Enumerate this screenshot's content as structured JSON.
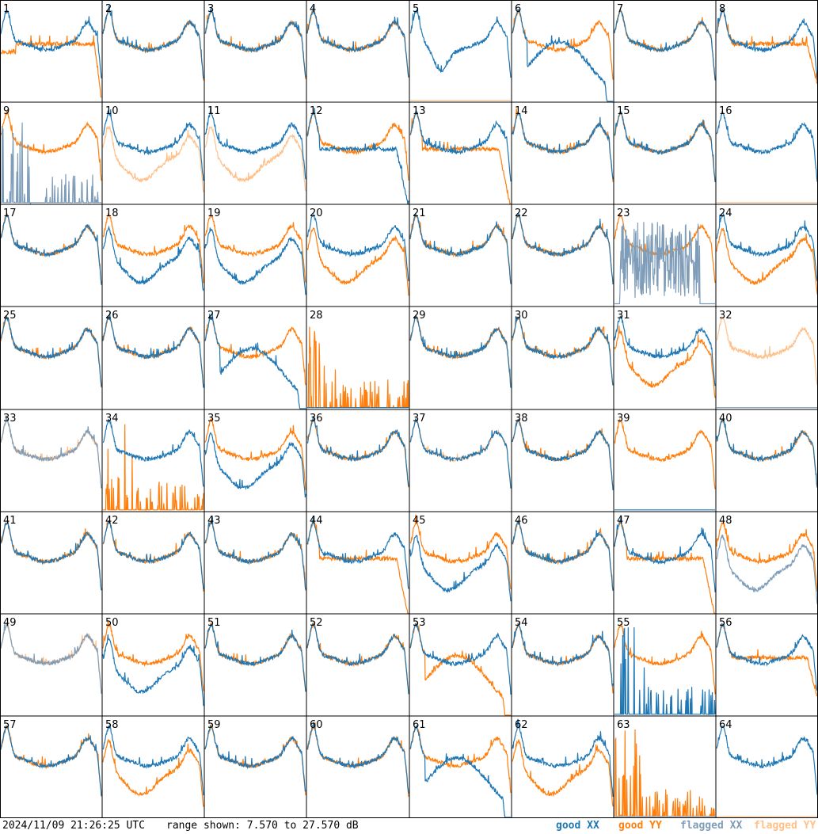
{
  "footer": {
    "timestamp": "2024/11/09 21:26:25 UTC",
    "range_text": "range shown: 7.570 to 27.570 dB"
  },
  "legend": {
    "good_xx": "good XX",
    "good_yy": "good YY",
    "flagged_xx": "flagged XX",
    "flagged_yy": "flagged YY"
  },
  "colors": {
    "good_xx": "#1f77b4",
    "good_yy": "#ff7f0e",
    "flagged_xx": "#7f9db9",
    "flagged_yy": "#ffc08a",
    "grid": "#000000",
    "background": "#ffffff"
  },
  "chart_data": {
    "type": "line",
    "layout": "8x8 small multiples",
    "y_range_db": [
      7.57,
      27.57
    ],
    "series_names": [
      "good XX",
      "good YY",
      "flagged XX",
      "flagged YY"
    ],
    "panels": [
      {
        "id": "1",
        "xx": "good",
        "yy": "good",
        "xx_shape": "normal",
        "yy_shape": "noisy_drop"
      },
      {
        "id": "2",
        "xx": "good",
        "yy": "good",
        "xx_shape": "normal",
        "yy_shape": "normal"
      },
      {
        "id": "3",
        "xx": "good",
        "yy": "good",
        "xx_shape": "normal",
        "yy_shape": "normal"
      },
      {
        "id": "4",
        "xx": "good",
        "yy": "good",
        "xx_shape": "normal",
        "yy_shape": "normal"
      },
      {
        "id": "5",
        "xx": "good",
        "yy": "flagged",
        "xx_shape": "dip",
        "yy_shape": "flat_zero"
      },
      {
        "id": "6",
        "xx": "good",
        "yy": "good",
        "xx_shape": "deep_drop",
        "yy_shape": "normal"
      },
      {
        "id": "7",
        "xx": "good",
        "yy": "good",
        "xx_shape": "normal",
        "yy_shape": "normal"
      },
      {
        "id": "8",
        "xx": "good",
        "yy": "good",
        "xx_shape": "normal",
        "yy_shape": "plateau"
      },
      {
        "id": "9",
        "xx": "flagged",
        "yy": "good",
        "xx_shape": "spiky_low",
        "yy_shape": "normal"
      },
      {
        "id": "10",
        "xx": "good",
        "yy": "flagged",
        "xx_shape": "normal",
        "yy_shape": "low"
      },
      {
        "id": "11",
        "xx": "good",
        "yy": "flagged",
        "xx_shape": "normal",
        "yy_shape": "low"
      },
      {
        "id": "12",
        "xx": "good",
        "yy": "good",
        "xx_shape": "plateau_drop",
        "yy_shape": "normal"
      },
      {
        "id": "13",
        "xx": "good",
        "yy": "good",
        "xx_shape": "normal",
        "yy_shape": "plateau_drop"
      },
      {
        "id": "14",
        "xx": "good",
        "yy": "good",
        "xx_shape": "normal",
        "yy_shape": "normal"
      },
      {
        "id": "15",
        "xx": "good",
        "yy": "good",
        "xx_shape": "normal",
        "yy_shape": "normal"
      },
      {
        "id": "16",
        "xx": "good",
        "yy": "flagged",
        "xx_shape": "normal",
        "yy_shape": "flat_zero"
      },
      {
        "id": "17",
        "xx": "good",
        "yy": "good",
        "xx_shape": "normal",
        "yy_shape": "normal"
      },
      {
        "id": "18",
        "xx": "good",
        "yy": "good",
        "xx_shape": "low",
        "yy_shape": "normal"
      },
      {
        "id": "19",
        "xx": "good",
        "yy": "good",
        "xx_shape": "low",
        "yy_shape": "normal"
      },
      {
        "id": "20",
        "xx": "good",
        "yy": "good",
        "xx_shape": "normal",
        "yy_shape": "low"
      },
      {
        "id": "21",
        "xx": "good",
        "yy": "good",
        "xx_shape": "normal",
        "yy_shape": "normal"
      },
      {
        "id": "22",
        "xx": "good",
        "yy": "good",
        "xx_shape": "normal",
        "yy_shape": "normal"
      },
      {
        "id": "23",
        "xx": "flagged",
        "yy": "good",
        "xx_shape": "spiky_mid",
        "yy_shape": "normal"
      },
      {
        "id": "24",
        "xx": "good",
        "yy": "good",
        "xx_shape": "normal",
        "yy_shape": "low"
      },
      {
        "id": "25",
        "xx": "good",
        "yy": "good",
        "xx_shape": "normal",
        "yy_shape": "normal"
      },
      {
        "id": "26",
        "xx": "good",
        "yy": "good",
        "xx_shape": "normal",
        "yy_shape": "normal"
      },
      {
        "id": "27",
        "xx": "good",
        "yy": "good",
        "xx_shape": "deep_drop",
        "yy_shape": "normal"
      },
      {
        "id": "28",
        "xx": "good",
        "yy": "good",
        "xx_shape": "flat_zero",
        "yy_shape": "spiky_low"
      },
      {
        "id": "29",
        "xx": "good",
        "yy": "good",
        "xx_shape": "normal",
        "yy_shape": "normal"
      },
      {
        "id": "30",
        "xx": "good",
        "yy": "good",
        "xx_shape": "normal",
        "yy_shape": "normal"
      },
      {
        "id": "31",
        "xx": "good",
        "yy": "good",
        "xx_shape": "normal",
        "yy_shape": "low"
      },
      {
        "id": "32",
        "xx": "flagged",
        "yy": "flagged",
        "xx_shape": "flat_zero",
        "yy_shape": "normal"
      },
      {
        "id": "33",
        "xx": "flagged",
        "yy": "flagged",
        "xx_shape": "normal",
        "yy_shape": "normal"
      },
      {
        "id": "34",
        "xx": "good",
        "yy": "good",
        "xx_shape": "normal",
        "yy_shape": "spiky_low"
      },
      {
        "id": "35",
        "xx": "good",
        "yy": "good",
        "xx_shape": "low",
        "yy_shape": "normal"
      },
      {
        "id": "36",
        "xx": "good",
        "yy": "good",
        "xx_shape": "normal",
        "yy_shape": "normal"
      },
      {
        "id": "37",
        "xx": "good",
        "yy": "flagged",
        "xx_shape": "normal",
        "yy_shape": "normal"
      },
      {
        "id": "38",
        "xx": "good",
        "yy": "good",
        "xx_shape": "normal",
        "yy_shape": "normal"
      },
      {
        "id": "39",
        "xx": "good",
        "yy": "good",
        "xx_shape": "flat_zero",
        "yy_shape": "normal"
      },
      {
        "id": "40",
        "xx": "good",
        "yy": "good",
        "xx_shape": "normal",
        "yy_shape": "normal"
      },
      {
        "id": "41",
        "xx": "good",
        "yy": "good",
        "xx_shape": "normal",
        "yy_shape": "normal"
      },
      {
        "id": "42",
        "xx": "good",
        "yy": "good",
        "xx_shape": "normal",
        "yy_shape": "normal"
      },
      {
        "id": "43",
        "xx": "good",
        "yy": "good",
        "xx_shape": "normal",
        "yy_shape": "normal"
      },
      {
        "id": "44",
        "xx": "good",
        "yy": "good",
        "xx_shape": "normal",
        "yy_shape": "plateau_drop"
      },
      {
        "id": "45",
        "xx": "good",
        "yy": "good",
        "xx_shape": "low",
        "yy_shape": "normal"
      },
      {
        "id": "46",
        "xx": "good",
        "yy": "good",
        "xx_shape": "normal",
        "yy_shape": "normal"
      },
      {
        "id": "47",
        "xx": "good",
        "yy": "good",
        "xx_shape": "normal",
        "yy_shape": "plateau_drop"
      },
      {
        "id": "48",
        "xx": "flagged",
        "yy": "good",
        "xx_shape": "low",
        "yy_shape": "normal"
      },
      {
        "id": "49",
        "xx": "flagged",
        "yy": "flagged",
        "xx_shape": "normal",
        "yy_shape": "normal"
      },
      {
        "id": "50",
        "xx": "good",
        "yy": "good",
        "xx_shape": "low",
        "yy_shape": "normal"
      },
      {
        "id": "51",
        "xx": "good",
        "yy": "good",
        "xx_shape": "normal",
        "yy_shape": "normal"
      },
      {
        "id": "52",
        "xx": "good",
        "yy": "good",
        "xx_shape": "normal",
        "yy_shape": "normal"
      },
      {
        "id": "53",
        "xx": "good",
        "yy": "good",
        "xx_shape": "normal",
        "yy_shape": "deep_drop"
      },
      {
        "id": "54",
        "xx": "good",
        "yy": "good",
        "xx_shape": "normal",
        "yy_shape": "normal"
      },
      {
        "id": "55",
        "xx": "good",
        "yy": "good",
        "xx_shape": "spiky_low",
        "yy_shape": "normal"
      },
      {
        "id": "56",
        "xx": "good",
        "yy": "good",
        "xx_shape": "normal",
        "yy_shape": "plateau"
      },
      {
        "id": "57",
        "xx": "good",
        "yy": "good",
        "xx_shape": "normal",
        "yy_shape": "normal"
      },
      {
        "id": "58",
        "xx": "good",
        "yy": "good",
        "xx_shape": "normal",
        "yy_shape": "low"
      },
      {
        "id": "59",
        "xx": "good",
        "yy": "good",
        "xx_shape": "normal",
        "yy_shape": "normal"
      },
      {
        "id": "60",
        "xx": "good",
        "yy": "good",
        "xx_shape": "normal",
        "yy_shape": "normal"
      },
      {
        "id": "61",
        "xx": "good",
        "yy": "good",
        "xx_shape": "deep_drop",
        "yy_shape": "normal"
      },
      {
        "id": "62",
        "xx": "good",
        "yy": "good",
        "xx_shape": "normal",
        "yy_shape": "low"
      },
      {
        "id": "63",
        "xx": "flagged",
        "yy": "good",
        "xx_shape": "flat_zero",
        "yy_shape": "spiky_low"
      },
      {
        "id": "64",
        "xx": "good",
        "yy": "flagged",
        "xx_shape": "normal",
        "yy_shape": "flat_zero"
      }
    ]
  }
}
